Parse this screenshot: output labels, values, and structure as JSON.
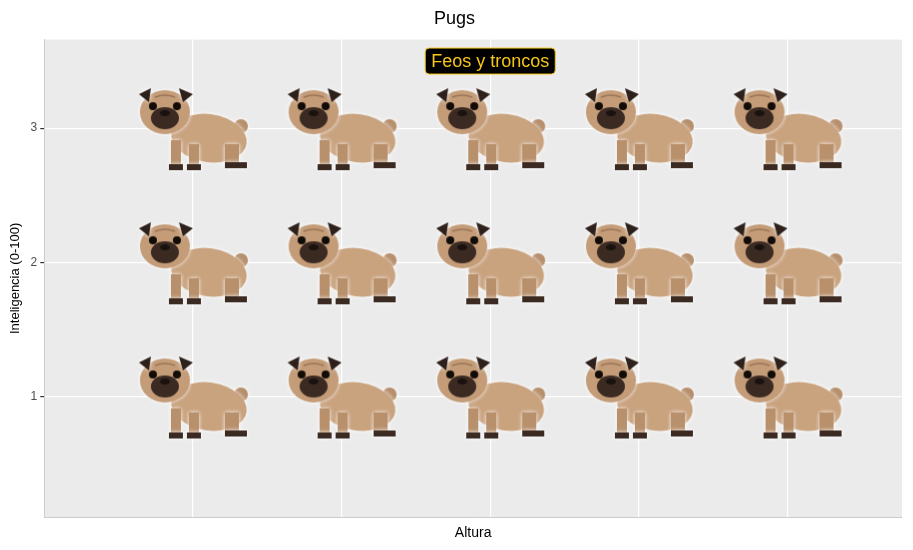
{
  "chart_data": {
    "type": "scatter",
    "title": "Pugs",
    "x_label": "Altura",
    "y_label": "Inteligencia (0-100)",
    "x": [
      1,
      2,
      3,
      4,
      5,
      1,
      2,
      3,
      4,
      5,
      1,
      2,
      3,
      4,
      5
    ],
    "values": [
      1,
      1,
      1,
      1,
      1,
      2,
      2,
      2,
      2,
      2,
      3,
      3,
      3,
      3,
      3
    ],
    "marker": "pug",
    "xlim": [
      0,
      5.77
    ],
    "ylim": [
      0.1,
      3.66
    ],
    "xticks": [
      1,
      2,
      3,
      4,
      5
    ],
    "yticks": [
      1,
      2,
      3
    ],
    "tick_labels": "y",
    "grid": true,
    "annotations": [
      {
        "text": "Feos y troncos",
        "x": 3,
        "y": 3.5,
        "color": "#F5C518"
      }
    ]
  }
}
